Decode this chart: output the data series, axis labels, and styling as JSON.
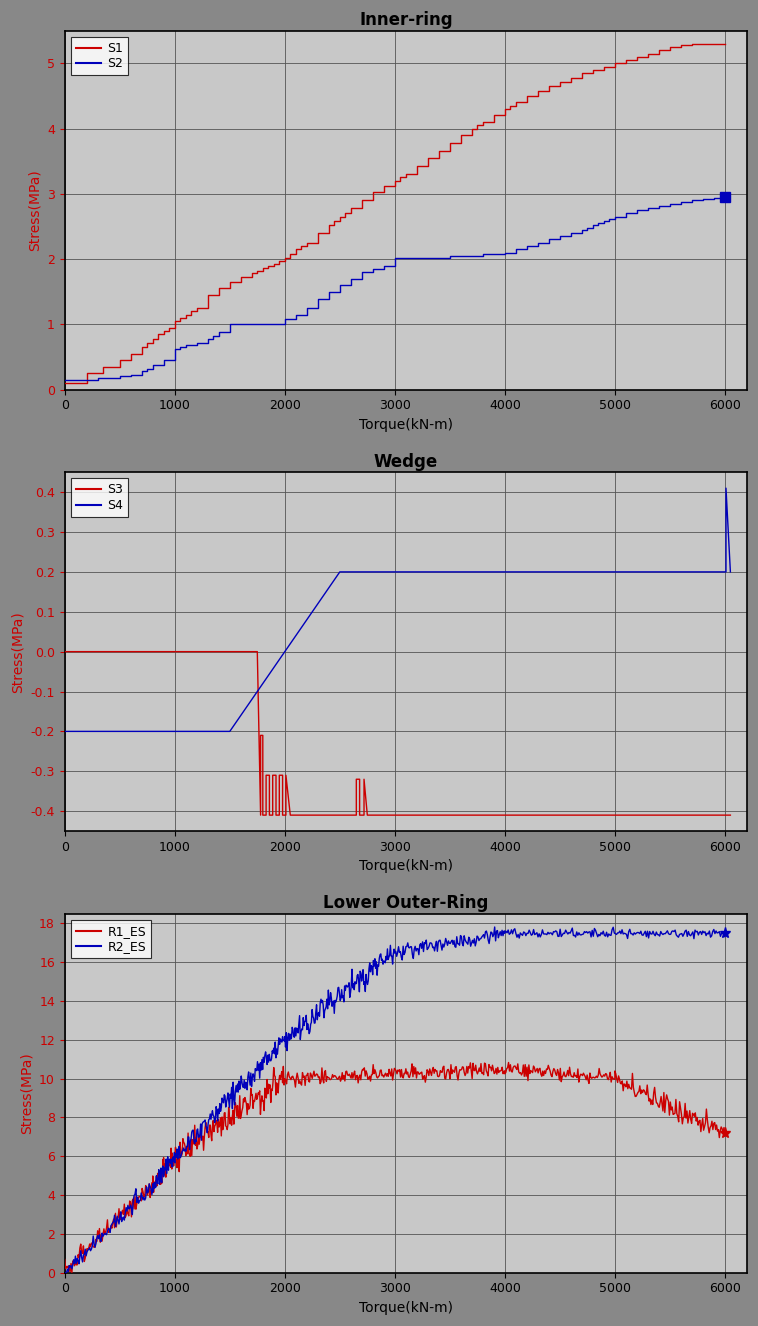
{
  "chart1": {
    "title": "Inner-ring",
    "xlabel": "Torque(kN-m)",
    "ylabel": "Stress(MPa)",
    "xlim": [
      0,
      6200
    ],
    "ylim": [
      0,
      5.5
    ],
    "xticks": [
      0,
      1000,
      2000,
      3000,
      4000,
      5000,
      6000
    ],
    "yticks": [
      0,
      1,
      2,
      3,
      4,
      5
    ],
    "legend": [
      "S1",
      "S2"
    ],
    "s1_color": "#cc0000",
    "s2_color": "#0000bb"
  },
  "chart2": {
    "title": "Wedge",
    "xlabel": "Torque(kN-m)",
    "ylabel": "Stress(MPa)",
    "xlim": [
      0,
      6200
    ],
    "ylim": [
      -0.45,
      0.45
    ],
    "xticks": [
      0,
      1000,
      2000,
      3000,
      4000,
      5000,
      6000
    ],
    "yticks": [
      -0.4,
      -0.3,
      -0.2,
      -0.1,
      0.0,
      0.1,
      0.2,
      0.3,
      0.4
    ],
    "legend": [
      "S3",
      "S4"
    ],
    "s3_color": "#cc0000",
    "s4_color": "#0000bb"
  },
  "chart3": {
    "title": "Lower Outer-Ring",
    "xlabel": "Torque(kN-m)",
    "ylabel": "Stress(MPa)",
    "xlim": [
      0,
      6200
    ],
    "ylim": [
      0,
      18.5
    ],
    "xticks": [
      0,
      1000,
      2000,
      3000,
      4000,
      5000,
      6000
    ],
    "yticks": [
      0,
      2,
      4,
      6,
      8,
      10,
      12,
      14,
      16,
      18
    ],
    "legend": [
      "R1_ES",
      "R2_ES"
    ],
    "r1_color": "#cc0000",
    "r2_color": "#0000bb"
  },
  "fig_bg": "#888888",
  "plot_bg": "#c8c8c8",
  "title_fontsize": 12,
  "label_fontsize": 10,
  "tick_fontsize": 9,
  "legend_fontsize": 9,
  "figsize": [
    7.58,
    13.26
  ],
  "dpi": 100
}
